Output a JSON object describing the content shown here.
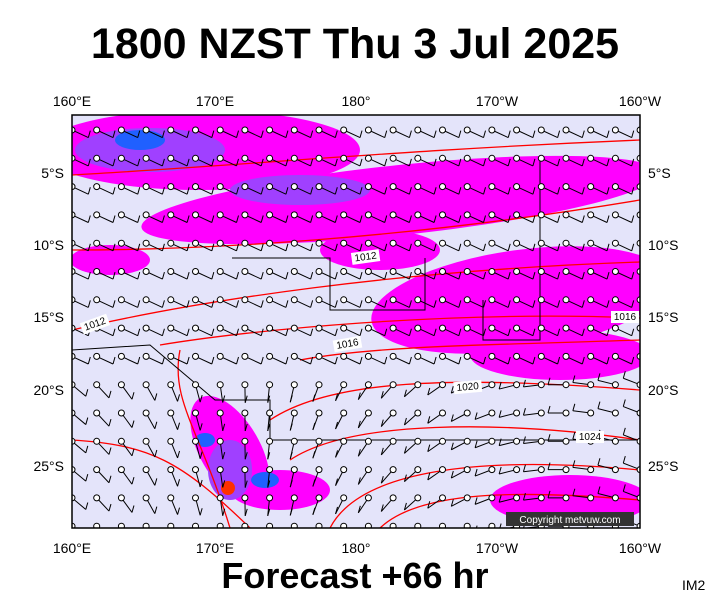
{
  "header": {
    "title": "1800 NZST Thu 3 Jul 2025"
  },
  "map": {
    "lon_labels": [
      "160°E",
      "170°E",
      "180°",
      "170°W",
      "160°W"
    ],
    "lat_labels": [
      "5°S",
      "10°S",
      "15°S",
      "20°S",
      "25°S"
    ],
    "isobar_labels": [
      "1012",
      "1012",
      "1016",
      "1020",
      "1024",
      "1016"
    ],
    "copyright": "Copyright metvuw.com"
  },
  "footer": {
    "forecast": "Forecast +66 hr",
    "code": "IM2"
  }
}
